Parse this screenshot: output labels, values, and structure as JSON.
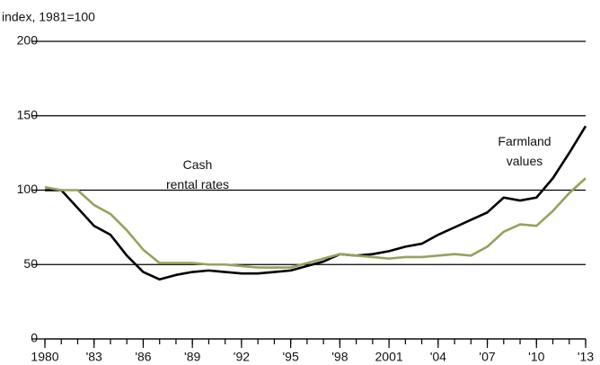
{
  "chart_data": {
    "type": "line",
    "y_axis_label": "index, 1981=100",
    "x": [
      1980,
      1981,
      1982,
      1983,
      1984,
      1985,
      1986,
      1987,
      1988,
      1989,
      1990,
      1991,
      1992,
      1993,
      1994,
      1995,
      1996,
      1997,
      1998,
      1999,
      2000,
      2001,
      2002,
      2003,
      2004,
      2005,
      2006,
      2007,
      2008,
      2009,
      2010,
      2011,
      2012,
      2013
    ],
    "series": [
      {
        "name": "Farmland values",
        "color": "#000000",
        "values": [
          100,
          100,
          88,
          76,
          70,
          56,
          45,
          40,
          43,
          45,
          46,
          45,
          44,
          44,
          45,
          46,
          49,
          52,
          57,
          56,
          57,
          59,
          62,
          64,
          70,
          75,
          80,
          85,
          95,
          93,
          95,
          108,
          125,
          143
        ]
      },
      {
        "name": "Cash rental rates",
        "color": "#95a25e",
        "values": [
          102,
          100,
          100,
          90,
          84,
          73,
          60,
          51,
          51,
          51,
          50,
          50,
          49,
          48,
          48,
          48,
          51,
          54,
          57,
          56,
          55,
          54,
          55,
          55,
          56,
          57,
          56,
          62,
          72,
          77,
          76,
          86,
          98,
          108
        ]
      }
    ],
    "xlim": [
      1980,
      2013
    ],
    "xticks": [
      1980,
      {
        "value": 1983,
        "label": "'83"
      },
      {
        "value": 1986,
        "label": "'86"
      },
      {
        "value": 1989,
        "label": "'89"
      },
      {
        "value": 1992,
        "label": "'92"
      },
      {
        "value": 1995,
        "label": "'95"
      },
      {
        "value": 1998,
        "label": "'98"
      },
      2001,
      {
        "value": 2004,
        "label": "'04"
      },
      {
        "value": 2007,
        "label": "'07"
      },
      {
        "value": 2010,
        "label": "'10"
      },
      {
        "value": 2013,
        "label": "'13"
      }
    ],
    "xminor_ticks": [
      1980,
      1981,
      1982,
      1983,
      1984,
      1985,
      1986,
      1987,
      1988,
      1989,
      1990,
      1991,
      1992,
      1993,
      1994,
      1995,
      1996,
      1997,
      1998,
      1999,
      2000,
      2001,
      2002,
      2003,
      2004,
      2005,
      2006,
      2007,
      2008,
      2009,
      2010,
      2011,
      2012,
      2013
    ],
    "ylim": [
      0,
      200
    ],
    "yticks": [
      0,
      50,
      100,
      150,
      200
    ],
    "grid": true
  }
}
